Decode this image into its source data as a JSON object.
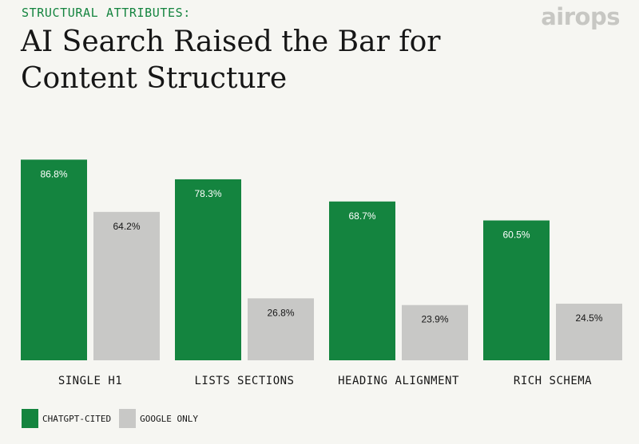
{
  "header": {
    "eyebrow": "STRUCTURAL ATTRIBUTES:",
    "title": "AI Search Raised the Bar for Content Structure"
  },
  "logo": {
    "text": "airops"
  },
  "colors": {
    "chatgpt": "#14843f",
    "google": "#c8c8c6",
    "background": "#f6f6f2",
    "text": "#161616"
  },
  "legend": {
    "items": [
      {
        "label": "CHATGPT-CITED",
        "color": "#14843f"
      },
      {
        "label": "GOOGLE ONLY",
        "color": "#c8c8c6"
      }
    ]
  },
  "chart_data": {
    "type": "bar",
    "categories": [
      "SINGLE H1",
      "LISTS SECTIONS",
      "HEADING ALIGNMENT",
      "RICH SCHEMA"
    ],
    "series": [
      {
        "name": "CHATGPT-CITED",
        "values": [
          86.8,
          78.3,
          68.7,
          60.5
        ],
        "labels": [
          "86.8%",
          "78.3%",
          "68.7%",
          "60.5%"
        ],
        "color": "#14843f",
        "label_color": "#ffffff"
      },
      {
        "name": "GOOGLE ONLY",
        "values": [
          64.2,
          26.8,
          23.9,
          24.5
        ],
        "labels": [
          "64.2%",
          "26.8%",
          "23.9%",
          "24.5%"
        ],
        "color": "#c8c8c6",
        "label_color": "#161616"
      }
    ],
    "ylim": [
      0,
      100
    ],
    "grid": false,
    "legend_position": "bottom-left"
  }
}
